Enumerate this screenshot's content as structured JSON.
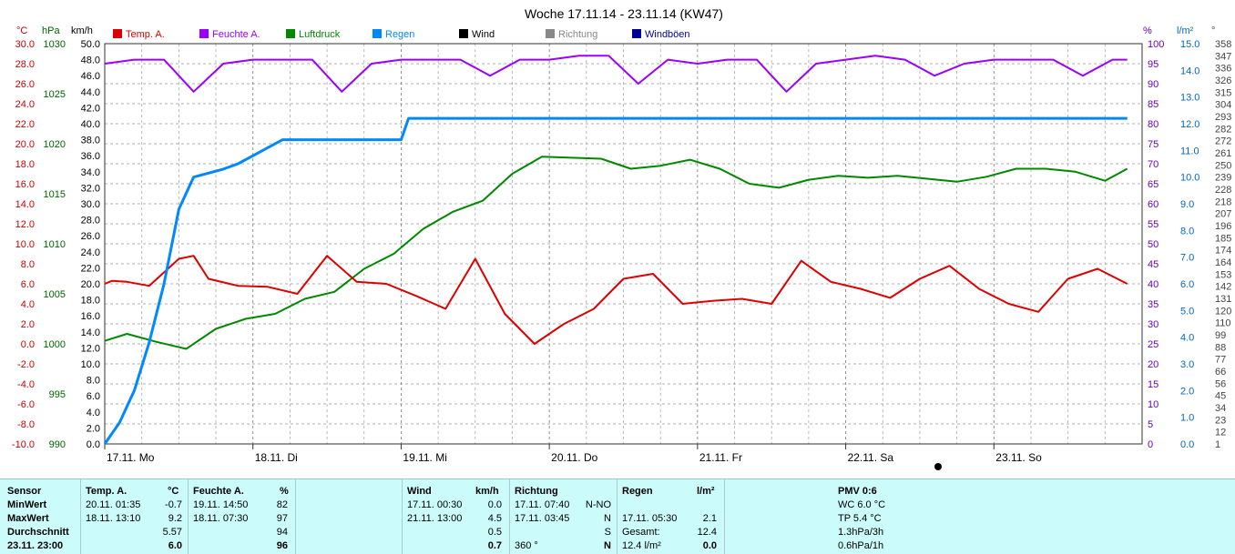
{
  "chart_data": {
    "type": "line",
    "title": "Woche 17.11.14 - 23.11.14 (KW47)",
    "x_labels": [
      "17.11. Mo",
      "18.11. Di",
      "19.11. Mi",
      "20.11. Do",
      "21.11. Fr",
      "22.11. Sa",
      "23.11. So"
    ],
    "axes": {
      "temp": {
        "unit": "°C",
        "ticks": [
          "30.0",
          "28.0",
          "26.0",
          "24.0",
          "22.0",
          "20.0",
          "18.0",
          "16.0",
          "14.0",
          "12.0",
          "10.0",
          "8.0",
          "6.0",
          "4.0",
          "2.0",
          "0.0",
          "-2.0",
          "-4.0",
          "-6.0",
          "-8.0",
          "-10.0"
        ],
        "range": [
          -10,
          30
        ],
        "color": "#cc0000"
      },
      "pressure": {
        "unit": "hPa",
        "ticks": [
          "1030",
          "1025",
          "1020",
          "1015",
          "1010",
          "1005",
          "1000",
          "995",
          "990"
        ],
        "range": [
          990,
          1030
        ],
        "color": "#006600"
      },
      "wind": {
        "unit": "km/h",
        "ticks": [
          "50.0",
          "48.0",
          "46.0",
          "44.0",
          "42.0",
          "40.0",
          "38.0",
          "36.0",
          "34.0",
          "32.0",
          "30.0",
          "28.0",
          "26.0",
          "24.0",
          "22.0",
          "20.0",
          "18.0",
          "16.0",
          "14.0",
          "12.0",
          "10.0",
          "8.0",
          "6.0",
          "4.0",
          "2.0",
          "0.0"
        ],
        "range": [
          0,
          50
        ],
        "color": "#000000"
      },
      "humidity": {
        "unit": "%",
        "ticks": [
          "100",
          "95",
          "90",
          "85",
          "80",
          "75",
          "70",
          "65",
          "60",
          "55",
          "50",
          "45",
          "40",
          "35",
          "30",
          "25",
          "20",
          "15",
          "10",
          "5",
          "0"
        ],
        "range": [
          0,
          100
        ],
        "color": "#6600cc"
      },
      "rain": {
        "unit": "l/m²",
        "ticks": [
          "15.0",
          "14.0",
          "13.0",
          "12.0",
          "11.0",
          "10.0",
          "9.0",
          "8.0",
          "7.0",
          "6.0",
          "5.0",
          "4.0",
          "3.0",
          "2.0",
          "1.0",
          "0.0"
        ],
        "range": [
          0,
          15
        ],
        "color": "#0066cc"
      },
      "direction": {
        "unit": "°",
        "ticks": [
          "358",
          "347",
          "336",
          "326",
          "315",
          "304",
          "293",
          "282",
          "272",
          "261",
          "250",
          "239",
          "228",
          "218",
          "207",
          "196",
          "185",
          "174",
          "164",
          "153",
          "142",
          "131",
          "120",
          "110",
          "99",
          "88",
          "77",
          "66",
          "56",
          "45",
          "34",
          "23",
          "12",
          "1"
        ],
        "color": "#444444"
      }
    },
    "legend": [
      {
        "name": "Temp. A.",
        "color": "#dd0000"
      },
      {
        "name": "Feuchte A.",
        "color": "#9900ff"
      },
      {
        "name": "Luftdruck",
        "color": "#008800"
      },
      {
        "name": "Regen",
        "color": "#0088ff"
      },
      {
        "name": "Wind",
        "color": "#000000"
      },
      {
        "name": "Richtung",
        "color": "#888888"
      },
      {
        "name": "Windböen",
        "color": "#000099"
      }
    ],
    "series": {
      "temperature": {
        "x": [
          0,
          0.05,
          0.15,
          0.3,
          0.5,
          0.6,
          0.7,
          0.9,
          1.1,
          1.3,
          1.5,
          1.7,
          1.9,
          2.1,
          2.3,
          2.5,
          2.7,
          2.9,
          3.0,
          3.1,
          3.3,
          3.5,
          3.7,
          3.9,
          4.1,
          4.3,
          4.5,
          4.7,
          4.9,
          5.1,
          5.3,
          5.5,
          5.7,
          5.9,
          6.1,
          6.3,
          6.5,
          6.7,
          6.9
        ],
        "values": [
          6.0,
          6.3,
          6.2,
          5.8,
          8.5,
          8.8,
          6.5,
          5.8,
          5.7,
          5.0,
          8.8,
          6.2,
          6.0,
          4.8,
          3.5,
          8.5,
          3.0,
          0.0,
          1.0,
          2.0,
          3.5,
          6.5,
          7.0,
          4.0,
          4.3,
          4.5,
          4.0,
          8.3,
          6.2,
          5.5,
          4.6,
          6.5,
          7.8,
          5.5,
          4.0,
          3.2,
          6.5,
          7.5,
          6.0
        ]
      },
      "humidity": {
        "x": [
          0,
          0.2,
          0.4,
          0.6,
          0.8,
          1.0,
          1.2,
          1.4,
          1.6,
          1.8,
          2.0,
          2.2,
          2.4,
          2.6,
          2.8,
          3.0,
          3.2,
          3.4,
          3.6,
          3.8,
          4.0,
          4.2,
          4.4,
          4.6,
          4.8,
          5.0,
          5.2,
          5.4,
          5.6,
          5.8,
          6.0,
          6.2,
          6.4,
          6.6,
          6.8,
          6.9
        ],
        "values": [
          95,
          96,
          96,
          88,
          95,
          96,
          96,
          96,
          88,
          95,
          96,
          96,
          96,
          92,
          96,
          96,
          97,
          97,
          90,
          96,
          95,
          96,
          96,
          88,
          95,
          96,
          97,
          96,
          92,
          95,
          96,
          96,
          96,
          92,
          96,
          96
        ]
      },
      "pressure": {
        "x": [
          0,
          0.15,
          0.35,
          0.55,
          0.75,
          0.95,
          1.15,
          1.35,
          1.55,
          1.75,
          1.95,
          2.15,
          2.35,
          2.55,
          2.75,
          2.95,
          3.15,
          3.35,
          3.55,
          3.75,
          3.95,
          4.15,
          4.35,
          4.55,
          4.75,
          4.95,
          5.15,
          5.35,
          5.55,
          5.75,
          5.95,
          6.15,
          6.35,
          6.55,
          6.75,
          6.9
        ],
        "values": [
          1000.3,
          1001.0,
          1000.2,
          999.5,
          1001.5,
          1002.5,
          1003.0,
          1004.5,
          1005.2,
          1007.5,
          1009.0,
          1011.5,
          1013.2,
          1014.3,
          1017.0,
          1018.7,
          1018.6,
          1018.5,
          1017.5,
          1017.8,
          1018.4,
          1017.5,
          1016.0,
          1015.6,
          1016.4,
          1016.8,
          1016.6,
          1016.8,
          1016.5,
          1016.2,
          1016.7,
          1017.5,
          1017.5,
          1017.2,
          1016.3,
          1017.5
        ]
      },
      "rain_cumulative": {
        "x": [
          0,
          0.1,
          0.2,
          0.3,
          0.4,
          0.5,
          0.6,
          0.8,
          0.9,
          1.0,
          1.2,
          1.5,
          1.6,
          1.8,
          2.0,
          2.05,
          2.2,
          2.5,
          3.0,
          3.5,
          4.0,
          5.0,
          6.0,
          6.9
        ],
        "values": [
          0,
          0.8,
          2.0,
          3.8,
          6.0,
          8.8,
          10.0,
          10.3,
          10.5,
          10.8,
          11.4,
          11.4,
          11.4,
          11.4,
          11.4,
          12.2,
          12.2,
          12.2,
          12.2,
          12.2,
          12.2,
          12.2,
          12.2,
          12.2
        ]
      }
    }
  },
  "stats": {
    "headers": {
      "sensor": "Sensor",
      "temp": "Temp. A.",
      "temp_unit": "°C",
      "hum": "Feuchte A.",
      "hum_unit": "%",
      "wind": "Wind",
      "wind_unit": "km/h",
      "dir": "Richtung",
      "rain": "Regen",
      "rain_unit": "l/m²",
      "pmv": "PMV 0:6"
    },
    "rows": [
      {
        "label": "MinWert",
        "temp_time": "20.11.  01:35",
        "temp_val": "-0.7",
        "hum_time": "19.11.  14:50",
        "hum_val": "82",
        "wind_time": "17.11.  00:30",
        "wind_val": "0.0",
        "dir_time": "17.11.  07:40",
        "dir_val": "N-NO",
        "rain_time": "",
        "rain_val": "",
        "pmv": "WC 6.0 °C"
      },
      {
        "label": "MaxWert",
        "temp_time": "18.11.  13:10",
        "temp_val": "9.2",
        "hum_time": "18.11.  07:30",
        "hum_val": "97",
        "wind_time": "21.11.  13:00",
        "wind_val": "4.5",
        "dir_time": "17.11.  03:45",
        "dir_val": "N",
        "rain_time": "17.11.  05:30",
        "rain_val": "2.1",
        "pmv": "TP 5.4 °C"
      },
      {
        "label": "Durchschnitt",
        "temp_time": "",
        "temp_val": "5.57",
        "hum_time": "",
        "hum_val": "94",
        "wind_time": "",
        "wind_val": "0.5",
        "dir_time": "",
        "dir_val": "S",
        "rain_time": "Gesamt:",
        "rain_val": "12.4",
        "pmv": "1.3hPa/3h"
      },
      {
        "label": "23.11.  23:00",
        "temp_time": "",
        "temp_val": "6.0",
        "hum_time": "",
        "hum_val": "96",
        "wind_time": "",
        "wind_val": "0.7",
        "dir_time": "360 °",
        "dir_val": "N",
        "rain_time": "12.4 l/m²",
        "rain_val": "0.0",
        "pmv": "0.6hPa/1h"
      }
    ]
  }
}
